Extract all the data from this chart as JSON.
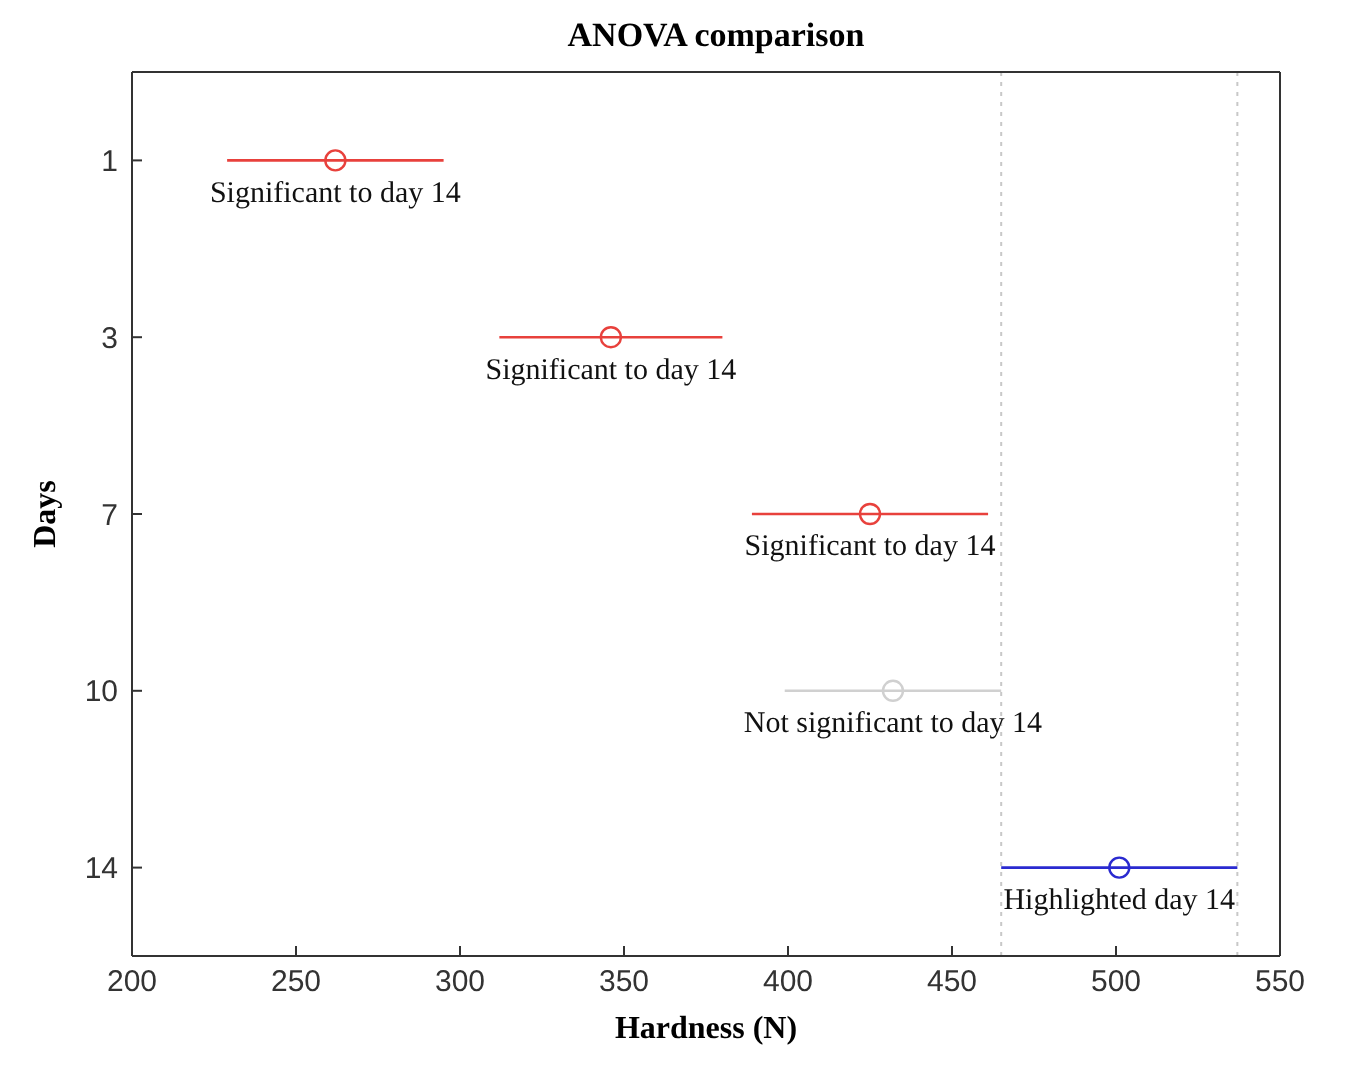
{
  "chart_data": {
    "type": "scatter",
    "orientation": "horizontal",
    "title": "ANOVA comparison",
    "xlabel": "Hardness (N)",
    "ylabel": "Days",
    "categories": [
      "1",
      "3",
      "7",
      "10",
      "14"
    ],
    "values": [
      262,
      346,
      425,
      432,
      501
    ],
    "errors": [
      33,
      34,
      36,
      33,
      36
    ],
    "colors": [
      "#e8413c",
      "#e8413c",
      "#e8413c",
      "#d0d0d0",
      "#2a2ad0"
    ],
    "marker": "circle",
    "xlim": [
      200,
      550
    ],
    "xticks": [
      200,
      250,
      300,
      350,
      400,
      450,
      500,
      550
    ],
    "grid": false,
    "ref_lines": [
      {
        "axis": "x",
        "value": 465,
        "color": "#c8c8c8",
        "line_style": "dotted"
      },
      {
        "axis": "x",
        "value": 537,
        "color": "#c8c8c8",
        "line_style": "dotted"
      }
    ],
    "annotations": [
      {
        "text": "Significant to day 14",
        "x": 262,
        "y": "1"
      },
      {
        "text": "Significant to day 14",
        "x": 346,
        "y": "3"
      },
      {
        "text": "Significant to day 14",
        "x": 425,
        "y": "7"
      },
      {
        "text": "Not significant to day 14",
        "x": 432,
        "y": "10"
      },
      {
        "text": "Highlighted day 14",
        "x": 501,
        "y": "14"
      }
    ]
  }
}
